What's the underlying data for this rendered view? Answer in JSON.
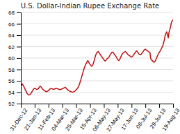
{
  "chart_data": {
    "type": "line",
    "title": "U.S. Dollar-Indian Rupee Exchange Rate",
    "color": "#bb1111",
    "grid": "y",
    "xlim": [
      0,
      11
    ],
    "xticks": [
      {
        "value": 0,
        "label": "31-Dec-12"
      },
      {
        "value": 1,
        "label": "21-Jan-13"
      },
      {
        "value": 2,
        "label": "11-Feb-13"
      },
      {
        "value": 3,
        "label": "04-Mar-13"
      },
      {
        "value": 4,
        "label": "25-Mar-13"
      },
      {
        "value": 5,
        "label": "15-Apr-13"
      },
      {
        "value": 6,
        "label": "06-May-13"
      },
      {
        "value": 7,
        "label": "27-May-13"
      },
      {
        "value": 8,
        "label": "17-Jun-13"
      },
      {
        "value": 9,
        "label": "08-Jul-13"
      },
      {
        "value": 10,
        "label": "29-Jul-13"
      },
      {
        "value": 11,
        "label": "19-Aug-13"
      }
    ],
    "ylim": [
      52,
      68
    ],
    "yticks": [
      52,
      54,
      56,
      58,
      60,
      62,
      64,
      66,
      68
    ],
    "x": [
      0,
      0.0576,
      0.1152,
      0.1728,
      0.2304,
      0.288,
      0.3455,
      0.4031,
      0.4607,
      0.5183,
      0.5759,
      0.6335,
      0.6911,
      0.7487,
      0.8063,
      0.8639,
      0.9215,
      0.9791,
      1.0366,
      1.0942,
      1.1518,
      1.2094,
      1.267,
      1.3246,
      1.3822,
      1.4398,
      1.4974,
      1.555,
      1.6126,
      1.6702,
      1.7277,
      1.7853,
      1.8429,
      1.9005,
      1.9581,
      2.0157,
      2.0733,
      2.1309,
      2.1885,
      2.2461,
      2.3037,
      2.3613,
      2.4188,
      2.4764,
      2.534,
      2.5916,
      2.6492,
      2.7068,
      2.7644,
      2.822,
      2.8796,
      2.9372,
      2.9948,
      3.0524,
      3.1099,
      3.1675,
      3.2251,
      3.2827,
      3.3403,
      3.3979,
      3.4555,
      3.5131,
      3.5707,
      3.6283,
      3.6859,
      3.7435,
      3.801,
      3.8586,
      3.9162,
      3.9738,
      4.0314,
      4.089,
      4.1466,
      4.2042,
      4.2618,
      4.3194,
      4.377,
      4.4346,
      4.4921,
      4.5497,
      4.6073,
      4.6649,
      4.7225,
      4.7801,
      4.8377,
      4.8953,
      4.9529,
      5.0105,
      5.0681,
      5.1257,
      5.1832,
      5.2408,
      5.2984,
      5.356,
      5.4136,
      5.4712,
      5.5288,
      5.5864,
      5.644,
      5.7016,
      5.7592,
      5.8168,
      5.8743,
      5.9319,
      5.9895,
      6.0471,
      6.1047,
      6.1623,
      6.2199,
      6.2775,
      6.3351,
      6.3927,
      6.4503,
      6.5079,
      6.5654,
      6.623,
      6.6806,
      6.7382,
      6.7958,
      6.8534,
      6.911,
      6.9686,
      7.0262,
      7.0838,
      7.1414,
      7.199,
      7.2565,
      7.3141,
      7.3717,
      7.4293,
      7.4869,
      7.5445,
      7.6021,
      7.6597,
      7.7173,
      7.7749,
      7.8325,
      7.8901,
      7.9476,
      8.0052,
      8.0628,
      8.1204,
      8.178,
      8.2356,
      8.2932,
      8.3508,
      8.4084,
      8.466,
      8.5236,
      8.5812,
      8.6387,
      8.6963,
      8.7539,
      8.8115,
      8.8691,
      8.9267,
      8.9843,
      9.0419,
      9.0995,
      9.1571,
      9.2147,
      9.2723,
      9.3298,
      9.3874,
      9.445,
      9.5026,
      9.5602,
      9.6178,
      9.6754,
      9.733,
      9.7906,
      9.8482,
      9.9058,
      9.9634,
      10.0209,
      10.0785,
      10.1361,
      10.1937,
      10.2513,
      10.3089,
      10.3665,
      10.4241,
      10.4817,
      10.5393,
      10.5969,
      10.6545,
      10.712,
      10.7696,
      10.8272,
      10.8848,
      10.9424,
      11
    ],
    "values": [
      55.0,
      55.25,
      55.45,
      55.2,
      54.95,
      54.6,
      54.35,
      54.05,
      53.75,
      53.6,
      53.5,
      53.55,
      53.65,
      53.85,
      54.1,
      54.35,
      54.55,
      54.7,
      54.65,
      54.55,
      54.5,
      54.55,
      54.6,
      54.85,
      55.05,
      55.0,
      54.8,
      54.6,
      54.45,
      54.35,
      54.25,
      54.15,
      54.1,
      54.15,
      54.2,
      54.35,
      54.5,
      54.6,
      54.65,
      54.6,
      54.55,
      54.5,
      54.55,
      54.6,
      54.7,
      54.65,
      54.6,
      54.55,
      54.5,
      54.45,
      54.5,
      54.55,
      54.6,
      54.65,
      54.75,
      54.8,
      54.85,
      54.7,
      54.5,
      54.4,
      54.3,
      54.2,
      54.15,
      54.1,
      54.05,
      54.0,
      54.05,
      54.1,
      54.2,
      54.35,
      54.5,
      54.7,
      54.9,
      55.2,
      55.6,
      56.05,
      56.5,
      57.0,
      57.5,
      58.0,
      58.4,
      58.75,
      59.05,
      59.3,
      59.55,
      59.35,
      59.05,
      58.85,
      58.65,
      58.55,
      58.75,
      59.05,
      59.55,
      60.05,
      60.55,
      60.85,
      61.05,
      61.15,
      60.95,
      60.75,
      60.55,
      60.35,
      60.15,
      59.95,
      59.75,
      59.55,
      59.45,
      59.65,
      59.85,
      59.95,
      60.05,
      60.25,
      60.55,
      60.75,
      60.95,
      61.05,
      60.95,
      60.75,
      60.55,
      60.35,
      60.15,
      59.85,
      59.65,
      59.55,
      59.75,
      60.05,
      60.35,
      60.65,
      60.85,
      60.95,
      61.05,
      61.15,
      61.05,
      60.85,
      60.65,
      60.55,
      60.45,
      60.35,
      60.25,
      60.15,
      60.25,
      60.45,
      60.65,
      60.85,
      61.05,
      61.25,
      61.15,
      60.95,
      60.75,
      60.65,
      60.55,
      60.65,
      60.85,
      61.05,
      61.25,
      61.45,
      61.55,
      61.45,
      61.35,
      61.25,
      61.15,
      61.05,
      60.95,
      59.85,
      59.65,
      59.55,
      59.35,
      59.25,
      59.35,
      59.55,
      59.85,
      60.25,
      60.55,
      60.85,
      61.05,
      61.25,
      61.55,
      61.85,
      62.1,
      62.6,
      63.1,
      63.9,
      64.3,
      64.6,
      64.1,
      63.55,
      64.55,
      65.05,
      65.55,
      66.25,
      66.55,
      66.65
    ]
  }
}
